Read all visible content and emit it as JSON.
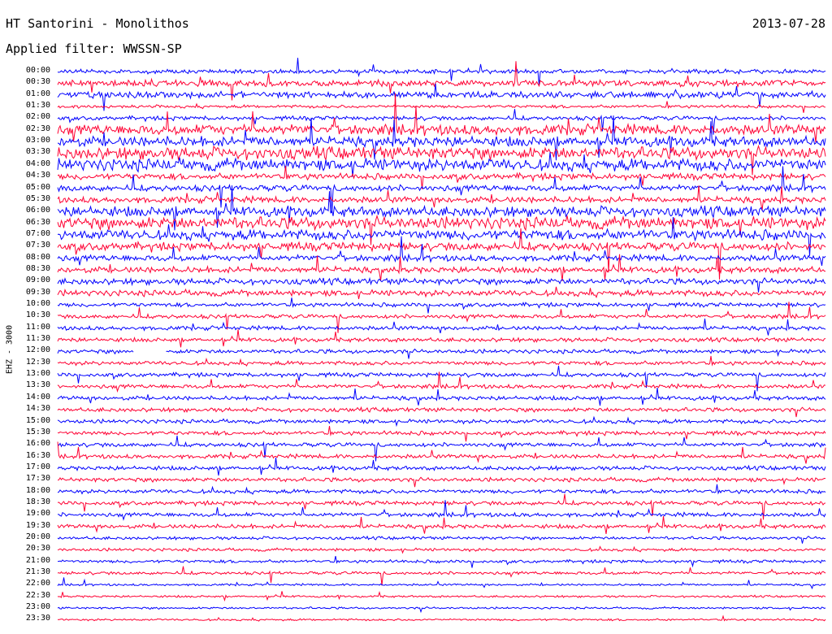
{
  "header": {
    "station": "HT Santorini - Monolithos",
    "date": "2013-07-28",
    "filter": "Applied filter: WWSSN-SP"
  },
  "chart_data": {
    "type": "line",
    "y_axis_label": "EHZ - 3000",
    "time_labels": [
      "00:00",
      "00:30",
      "01:00",
      "01:30",
      "02:00",
      "02:30",
      "03:00",
      "03:30",
      "04:00",
      "04:30",
      "05:00",
      "05:30",
      "06:00",
      "06:30",
      "07:00",
      "07:30",
      "08:00",
      "08:30",
      "09:00",
      "09:30",
      "10:00",
      "10:30",
      "11:00",
      "11:30",
      "12:00",
      "12:30",
      "13:00",
      "13:30",
      "14:00",
      "14:30",
      "15:00",
      "15:30",
      "16:00",
      "16:30",
      "17:00",
      "17:30",
      "18:00",
      "18:30",
      "19:00",
      "19:30",
      "20:00",
      "20:30",
      "21:00",
      "21:30",
      "22:00",
      "22:30",
      "23:00",
      "23:30"
    ],
    "colors": {
      "even_rows": "#0000ff",
      "odd_rows": "#ff0033"
    },
    "noise_level": [
      2,
      3,
      3,
      1.5,
      2,
      5,
      5,
      6,
      6,
      3,
      3,
      3,
      5,
      6,
      5,
      4,
      3,
      3,
      3,
      3,
      2,
      2,
      2,
      2,
      2,
      2,
      2,
      2,
      2,
      2,
      2,
      2,
      2,
      2,
      2,
      2,
      2,
      2,
      2,
      2,
      1.5,
      1.5,
      1.5,
      1.5,
      1,
      1,
      1,
      1
    ],
    "gaps": [
      {
        "row": 24,
        "from": 0.1,
        "to": 0.14
      }
    ]
  }
}
